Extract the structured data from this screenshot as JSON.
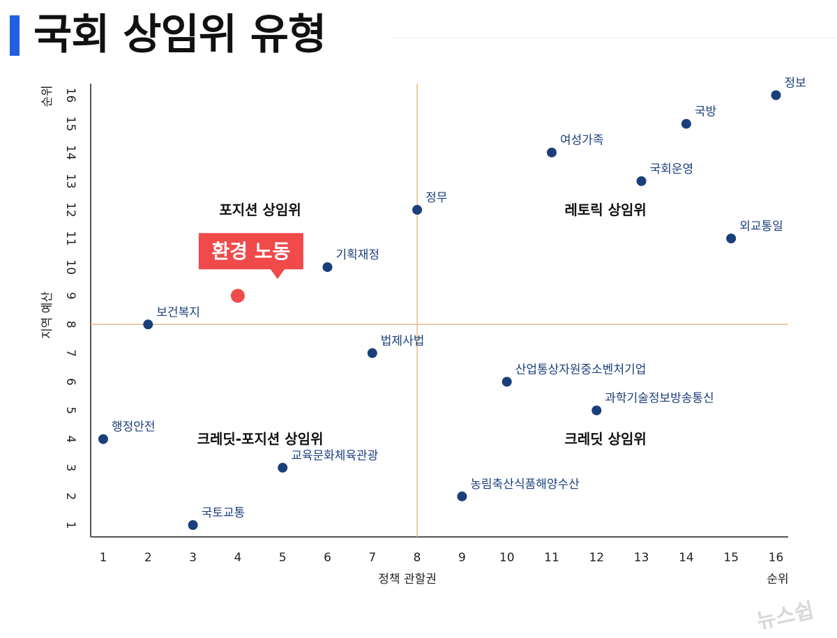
{
  "page": {
    "title": "국회 상임위 유형",
    "watermark": "뉴스쉽"
  },
  "colors": {
    "accent": "#1f5fe0",
    "point": "#1b3f7a",
    "highlight": "#f04a4a",
    "divider": "#e8b98a"
  },
  "chart_data": {
    "type": "scatter",
    "title": "",
    "xlabel": "정책 관할권",
    "ylabel": "지역 예산",
    "x_rank_label": "순위",
    "y_rank_label": "순위",
    "xlim": [
      1,
      16
    ],
    "ylim": [
      1,
      16
    ],
    "xticks": [
      "1",
      "2",
      "3",
      "4",
      "5",
      "6",
      "7",
      "8",
      "9",
      "10",
      "11",
      "12",
      "13",
      "14",
      "15",
      "16"
    ],
    "yticks": [
      "1",
      "2",
      "3",
      "4",
      "5",
      "6",
      "7",
      "8",
      "9",
      "10",
      "11",
      "12",
      "13",
      "14",
      "15",
      "16"
    ],
    "grid": false,
    "divider_x": 8,
    "divider_y": 8,
    "points": [
      {
        "label": "행정안전",
        "x": 1,
        "y": 4
      },
      {
        "label": "보건복지",
        "x": 2,
        "y": 8
      },
      {
        "label": "국토교통",
        "x": 3,
        "y": 1
      },
      {
        "label": "교육문화체육관광",
        "x": 5,
        "y": 3
      },
      {
        "label": "기획재정",
        "x": 6,
        "y": 10
      },
      {
        "label": "법제사법",
        "x": 7,
        "y": 7
      },
      {
        "label": "정무",
        "x": 8,
        "y": 12
      },
      {
        "label": "농림축산식품해양수산",
        "x": 9,
        "y": 2
      },
      {
        "label": "산업통상자원중소벤처기업",
        "x": 10,
        "y": 6
      },
      {
        "label": "여성가족",
        "x": 11,
        "y": 14
      },
      {
        "label": "과학기술정보방송통신",
        "x": 12,
        "y": 5
      },
      {
        "label": "국회운영",
        "x": 13,
        "y": 13
      },
      {
        "label": "국방",
        "x": 14,
        "y": 15
      },
      {
        "label": "외교통일",
        "x": 15,
        "y": 11
      },
      {
        "label": "정보",
        "x": 16,
        "y": 16
      }
    ],
    "highlight": {
      "label": "환경 노동",
      "x": 4,
      "y": 9
    },
    "quadrants": [
      {
        "label": "포지션 상임위",
        "x": 4.5,
        "y": 12
      },
      {
        "label": "레토릭 상임위",
        "x": 12.2,
        "y": 12
      },
      {
        "label": "크레딧-포지션 상임위",
        "x": 4.5,
        "y": 4
      },
      {
        "label": "크레딧 상임위",
        "x": 12.2,
        "y": 4
      }
    ]
  }
}
